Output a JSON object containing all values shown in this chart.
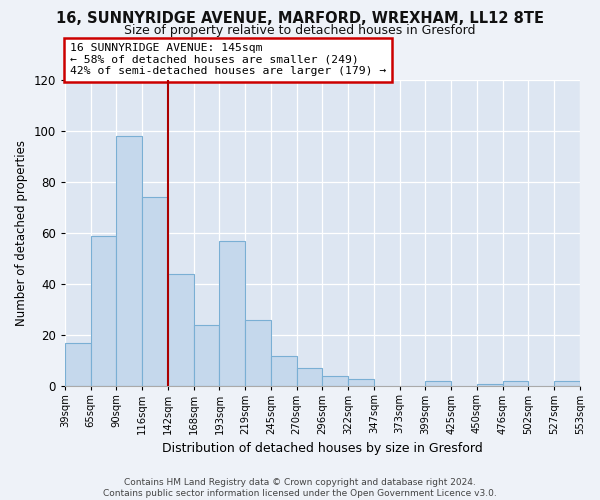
{
  "title": "16, SUNNYRIDGE AVENUE, MARFORD, WREXHAM, LL12 8TE",
  "subtitle": "Size of property relative to detached houses in Gresford",
  "xlabel": "Distribution of detached houses by size in Gresford",
  "ylabel": "Number of detached properties",
  "bin_labels": [
    "39sqm",
    "65sqm",
    "90sqm",
    "116sqm",
    "142sqm",
    "168sqm",
    "193sqm",
    "219sqm",
    "245sqm",
    "270sqm",
    "296sqm",
    "322sqm",
    "347sqm",
    "373sqm",
    "399sqm",
    "425sqm",
    "450sqm",
    "476sqm",
    "502sqm",
    "527sqm",
    "553sqm"
  ],
  "bar_values": [
    17,
    59,
    98,
    74,
    44,
    24,
    57,
    26,
    12,
    7,
    4,
    3,
    0,
    0,
    2,
    0,
    1,
    2,
    0,
    2
  ],
  "bar_color": "#c5d8ec",
  "bar_edge_color": "#7aafd4",
  "vline_x_index": 4,
  "vline_color": "#aa0000",
  "annotation_lines": [
    "16 SUNNYRIDGE AVENUE: 145sqm",
    "← 58% of detached houses are smaller (249)",
    "42% of semi-detached houses are larger (179) →"
  ],
  "ylim": [
    0,
    120
  ],
  "yticks": [
    0,
    20,
    40,
    60,
    80,
    100,
    120
  ],
  "footer_line1": "Contains HM Land Registry data © Crown copyright and database right 2024.",
  "footer_line2": "Contains public sector information licensed under the Open Government Licence v3.0.",
  "background_color": "#eef2f8",
  "plot_bg_color": "#dde6f2",
  "grid_color": "#ffffff",
  "title_fontsize": 10.5,
  "subtitle_fontsize": 9
}
